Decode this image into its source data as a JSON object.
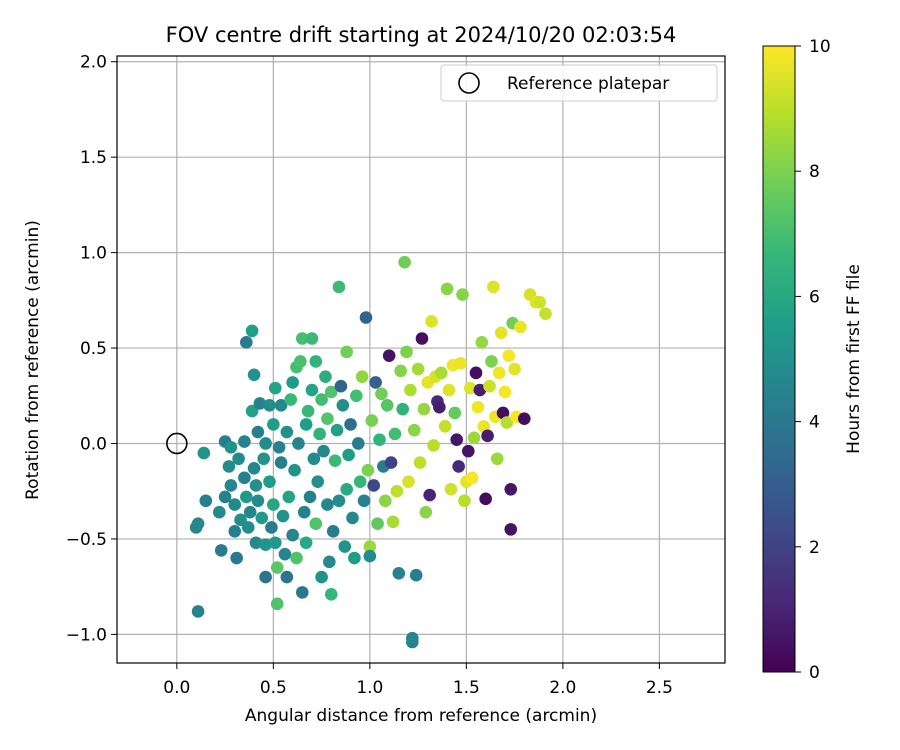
{
  "chart_data": {
    "type": "scatter",
    "title": "FOV centre drift starting at 2024/10/20 02:03:54",
    "xlabel": "Angular distance from reference (arcmin)",
    "ylabel": "Rotation from reference (arcmin)",
    "xlim": [
      -0.31,
      2.84
    ],
    "ylim": [
      -1.15,
      2.03
    ],
    "xticks": [
      0.0,
      0.5,
      1.0,
      1.5,
      2.0,
      2.5
    ],
    "xtick_labels": [
      "0.0",
      "0.5",
      "1.0",
      "1.5",
      "2.0",
      "2.5"
    ],
    "yticks": [
      -1.0,
      -0.5,
      0.0,
      0.5,
      1.0,
      1.5,
      2.0
    ],
    "ytick_labels": [
      "−1.0",
      "−0.5",
      "0.0",
      "0.5",
      "1.0",
      "1.5",
      "2.0"
    ],
    "grid": true,
    "legend": {
      "position": "top-right",
      "entries": [
        "Reference platepar"
      ]
    },
    "reference_point": {
      "x": 0.0,
      "y": 0.0
    },
    "colorbar": {
      "label": "Hours from first FF file",
      "min": 0,
      "max": 10,
      "ticks": [
        0,
        2,
        4,
        6,
        8,
        10
      ],
      "tick_labels": [
        "0",
        "2",
        "4",
        "6",
        "8",
        "10"
      ],
      "colormap": "viridis"
    },
    "colormap_stops": [
      "#440154",
      "#482878",
      "#3e4989",
      "#31688e",
      "#26828e",
      "#1f9e89",
      "#35b779",
      "#6ece58",
      "#b5de2b",
      "#fde725"
    ],
    "points": [
      [
        0.11,
        -0.88,
        4.5
      ],
      [
        0.1,
        -0.44,
        4.6
      ],
      [
        0.11,
        -0.42,
        4.7
      ],
      [
        0.14,
        -0.05,
        5.2
      ],
      [
        0.15,
        -0.3,
        4.4
      ],
      [
        0.23,
        -0.56,
        4.2
      ],
      [
        0.22,
        -0.36,
        4.8
      ],
      [
        0.25,
        0.01,
        4.3
      ],
      [
        0.25,
        -0.28,
        4.5
      ],
      [
        0.27,
        -0.12,
        4.9
      ],
      [
        0.28,
        -0.02,
        5.1
      ],
      [
        0.28,
        -0.22,
        4.6
      ],
      [
        0.3,
        -0.46,
        4.3
      ],
      [
        0.31,
        -0.6,
        4.1
      ],
      [
        0.3,
        -0.32,
        4.7
      ],
      [
        0.32,
        -0.08,
        4.8
      ],
      [
        0.33,
        -0.4,
        5.0
      ],
      [
        0.35,
        0.01,
        4.5
      ],
      [
        0.35,
        -0.18,
        4.4
      ],
      [
        0.36,
        -0.28,
        5.3
      ],
      [
        0.36,
        0.53,
        4.2
      ],
      [
        0.37,
        -0.44,
        4.9
      ],
      [
        0.38,
        -0.36,
        4.6
      ],
      [
        0.39,
        0.59,
        5.6
      ],
      [
        0.39,
        0.17,
        5.7
      ],
      [
        0.4,
        -0.13,
        4.6
      ],
      [
        0.4,
        0.36,
        5.1
      ],
      [
        0.41,
        -0.52,
        4.7
      ],
      [
        0.41,
        -0.22,
        5.0
      ],
      [
        0.42,
        0.06,
        4.4
      ],
      [
        0.42,
        -0.3,
        4.8
      ],
      [
        0.43,
        0.21,
        4.5
      ],
      [
        0.44,
        -0.39,
        5.4
      ],
      [
        0.45,
        -0.08,
        5.1
      ],
      [
        0.46,
        -0.7,
        3.8
      ],
      [
        0.46,
        -0.53,
        5.2
      ],
      [
        0.46,
        0.0,
        4.8
      ],
      [
        0.48,
        -0.2,
        5.5
      ],
      [
        0.48,
        0.2,
        4.9
      ],
      [
        0.49,
        -0.44,
        4.2
      ],
      [
        0.5,
        0.1,
        5.6
      ],
      [
        0.5,
        -0.32,
        5.9
      ],
      [
        0.51,
        -0.52,
        5.3
      ],
      [
        0.51,
        0.29,
        5.8
      ],
      [
        0.52,
        -0.84,
        7.2
      ],
      [
        0.52,
        -0.65,
        7.4
      ],
      [
        0.53,
        -0.02,
        4.5
      ],
      [
        0.54,
        0.2,
        4.7
      ],
      [
        0.54,
        -0.1,
        4.3
      ],
      [
        0.55,
        -0.38,
        5.1
      ],
      [
        0.56,
        -0.58,
        4.6
      ],
      [
        0.57,
        -0.7,
        3.8
      ],
      [
        0.57,
        0.06,
        5.0
      ],
      [
        0.58,
        -0.28,
        5.8
      ],
      [
        0.59,
        0.23,
        6.7
      ],
      [
        0.6,
        -0.48,
        4.6
      ],
      [
        0.6,
        0.32,
        5.4
      ],
      [
        0.61,
        -0.14,
        5.2
      ],
      [
        0.62,
        -0.6,
        7.2
      ],
      [
        0.62,
        0.4,
        7.0
      ],
      [
        0.63,
        0.0,
        4.6
      ],
      [
        0.64,
        0.43,
        7.1
      ],
      [
        0.65,
        -0.78,
        4.0
      ],
      [
        0.65,
        0.55,
        7.0
      ],
      [
        0.66,
        -0.36,
        4.4
      ],
      [
        0.67,
        0.1,
        5.6
      ],
      [
        0.67,
        -0.52,
        6.0
      ],
      [
        0.68,
        0.17,
        6.7
      ],
      [
        0.69,
        -0.28,
        4.4
      ],
      [
        0.7,
        0.28,
        5.8
      ],
      [
        0.7,
        0.55,
        6.8
      ],
      [
        0.71,
        -0.08,
        4.8
      ],
      [
        0.72,
        -0.42,
        7.2
      ],
      [
        0.72,
        0.43,
        6.5
      ],
      [
        0.73,
        -0.2,
        5.0
      ],
      [
        0.74,
        0.05,
        6.5
      ],
      [
        0.75,
        -0.7,
        5.1
      ],
      [
        0.75,
        0.23,
        6.9
      ],
      [
        0.76,
        -0.04,
        4.7
      ],
      [
        0.77,
        0.35,
        6.2
      ],
      [
        0.78,
        -0.32,
        4.6
      ],
      [
        0.78,
        0.13,
        7.3
      ],
      [
        0.79,
        -0.62,
        4.8
      ],
      [
        0.8,
        -0.79,
        6.6
      ],
      [
        0.8,
        0.27,
        7.2
      ],
      [
        0.81,
        -0.46,
        4.2
      ],
      [
        0.82,
        -0.09,
        6.8
      ],
      [
        0.83,
        0.07,
        5.7
      ],
      [
        0.84,
        0.82,
        6.8
      ],
      [
        0.84,
        -0.3,
        4.9
      ],
      [
        0.85,
        0.3,
        3.1
      ],
      [
        0.86,
        0.2,
        5.0
      ],
      [
        0.87,
        -0.54,
        5.1
      ],
      [
        0.88,
        -0.24,
        6.0
      ],
      [
        0.88,
        0.48,
        7.8
      ],
      [
        0.89,
        -0.06,
        5.5
      ],
      [
        0.9,
        0.1,
        3.5
      ],
      [
        0.91,
        -0.39,
        4.7
      ],
      [
        0.92,
        -0.6,
        5.5
      ],
      [
        0.93,
        0.25,
        7.0
      ],
      [
        0.94,
        0.0,
        4.3
      ],
      [
        0.95,
        -0.2,
        6.6
      ],
      [
        0.96,
        0.35,
        8.3
      ],
      [
        0.97,
        -0.3,
        4.4
      ],
      [
        0.98,
        0.66,
        3.2
      ],
      [
        0.99,
        -0.14,
        8.0
      ],
      [
        1.0,
        -0.54,
        8.5
      ],
      [
        1.0,
        -0.59,
        4.9
      ],
      [
        1.01,
        0.12,
        7.9
      ],
      [
        1.02,
        -0.22,
        2.2
      ],
      [
        1.03,
        0.32,
        3.0
      ],
      [
        1.04,
        -0.42,
        7.5
      ],
      [
        1.05,
        0.02,
        6.5
      ],
      [
        1.06,
        0.26,
        7.8
      ],
      [
        1.07,
        -0.12,
        4.2
      ],
      [
        1.08,
        -0.3,
        8.2
      ],
      [
        1.09,
        0.2,
        7.3
      ],
      [
        1.1,
        0.46,
        0.5
      ],
      [
        1.11,
        -0.1,
        2.0
      ],
      [
        1.12,
        -0.41,
        8.7
      ],
      [
        1.13,
        0.05,
        6.9
      ],
      [
        1.14,
        -0.25,
        9.0
      ],
      [
        1.15,
        -0.68,
        4.5
      ],
      [
        1.16,
        0.38,
        8.1
      ],
      [
        1.17,
        0.18,
        6.4
      ],
      [
        1.18,
        0.95,
        7.8
      ],
      [
        1.19,
        0.48,
        8.0
      ],
      [
        1.2,
        -0.2,
        9.4
      ],
      [
        1.21,
        0.28,
        8.8
      ],
      [
        1.22,
        -1.04,
        4.4
      ],
      [
        1.22,
        -1.02,
        4.6
      ],
      [
        1.23,
        0.07,
        8.2
      ],
      [
        1.24,
        -0.69,
        4.3
      ],
      [
        1.25,
        0.39,
        8.6
      ],
      [
        1.26,
        -0.1,
        9.0
      ],
      [
        1.27,
        0.55,
        0.4
      ],
      [
        1.28,
        0.18,
        8.4
      ],
      [
        1.29,
        -0.36,
        8.2
      ],
      [
        1.3,
        0.32,
        9.6
      ],
      [
        1.31,
        -0.27,
        1.0
      ],
      [
        1.32,
        0.64,
        9.5
      ],
      [
        1.33,
        -0.01,
        8.9
      ],
      [
        1.34,
        0.35,
        9.4
      ],
      [
        1.35,
        0.22,
        1.2
      ],
      [
        1.36,
        0.19,
        0.8
      ],
      [
        1.37,
        0.37,
        8.7
      ],
      [
        1.39,
        0.09,
        9.1
      ],
      [
        1.4,
        0.81,
        8.2
      ],
      [
        1.41,
        0.28,
        9.5
      ],
      [
        1.42,
        -0.24,
        9.3
      ],
      [
        1.43,
        0.41,
        9.8
      ],
      [
        1.44,
        0.16,
        7.6
      ],
      [
        1.45,
        0.02,
        0.6
      ],
      [
        1.46,
        -0.12,
        1.1
      ],
      [
        1.47,
        0.42,
        9.7
      ],
      [
        1.48,
        0.78,
        8.1
      ],
      [
        1.49,
        -0.3,
        8.9
      ],
      [
        1.5,
        -0.2,
        9.6
      ],
      [
        1.51,
        -0.04,
        0.5
      ],
      [
        1.52,
        0.29,
        9.5
      ],
      [
        1.53,
        -0.18,
        9.9
      ],
      [
        1.54,
        0.03,
        8.5
      ],
      [
        1.55,
        0.37,
        0.4
      ],
      [
        1.56,
        0.19,
        9.8
      ],
      [
        1.57,
        0.28,
        0.8
      ],
      [
        1.58,
        0.53,
        8.4
      ],
      [
        1.59,
        0.09,
        9.7
      ],
      [
        1.6,
        -0.29,
        0.3
      ],
      [
        1.61,
        0.04,
        0.8
      ],
      [
        1.62,
        0.3,
        9.2
      ],
      [
        1.63,
        0.43,
        8.0
      ],
      [
        1.64,
        0.82,
        9.5
      ],
      [
        1.65,
        0.14,
        9.8
      ],
      [
        1.66,
        -0.08,
        8.5
      ],
      [
        1.67,
        0.37,
        9.8
      ],
      [
        1.68,
        0.58,
        9.6
      ],
      [
        1.69,
        0.16,
        0.4
      ],
      [
        1.7,
        0.27,
        9.9
      ],
      [
        1.71,
        0.11,
        8.9
      ],
      [
        1.72,
        0.46,
        9.9
      ],
      [
        1.73,
        -0.45,
        0.5
      ],
      [
        1.73,
        -0.24,
        0.6
      ],
      [
        1.74,
        0.63,
        7.8
      ],
      [
        1.75,
        0.39,
        9.6
      ],
      [
        1.76,
        0.14,
        9.9
      ],
      [
        1.78,
        0.61,
        9.7
      ],
      [
        1.8,
        0.13,
        0.4
      ],
      [
        1.83,
        0.78,
        9.4
      ],
      [
        1.86,
        0.74,
        9.6
      ],
      [
        1.88,
        0.74,
        9.3
      ],
      [
        1.91,
        0.68,
        9.1
      ]
    ]
  }
}
